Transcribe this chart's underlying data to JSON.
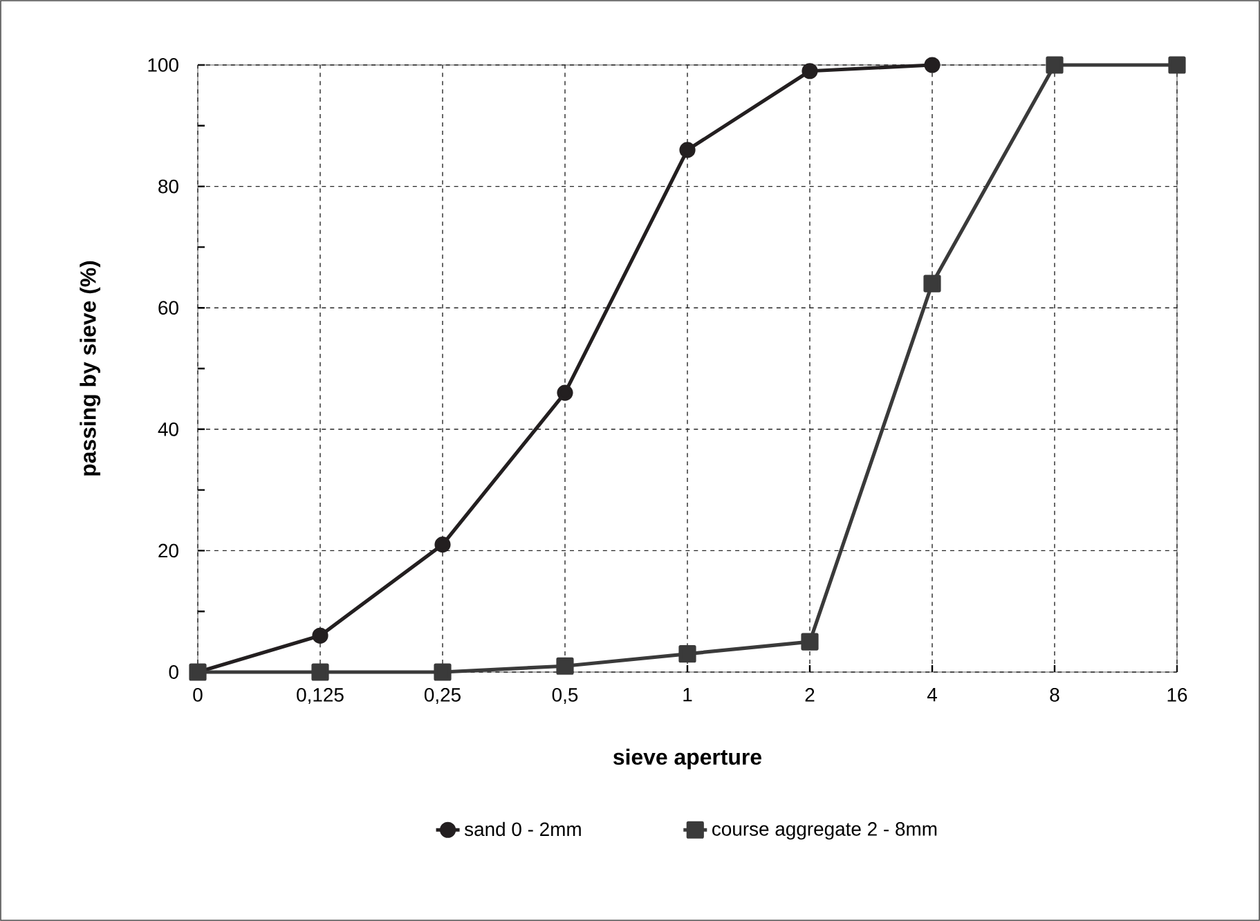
{
  "chart_data": {
    "type": "line",
    "xlabel": "sieve aperture",
    "ylabel": "passing by sieve (%)",
    "categories": [
      "0",
      "0,125",
      "0,25",
      "0,5",
      "1",
      "2",
      "4",
      "8",
      "16"
    ],
    "ylim": [
      0,
      100
    ],
    "yticks": [
      0,
      {
        "value": 10,
        "label": null
      },
      20,
      {
        "value": 30,
        "label": null
      },
      40,
      {
        "value": 50,
        "label": null
      },
      60,
      {
        "value": 70,
        "label": null
      },
      80,
      {
        "value": 90,
        "label": null
      },
      100
    ],
    "grid": true,
    "legend": "bottom",
    "series": [
      {
        "name": "sand 0 - 2mm",
        "color": "#231f20",
        "marker": "circle",
        "values": [
          0,
          6,
          21,
          46,
          86,
          99,
          100,
          null,
          null
        ]
      },
      {
        "name": "course aggregate 2 - 8mm",
        "color": "#3a3a3a",
        "marker": "square",
        "values": [
          0,
          0,
          0,
          1,
          3,
          5,
          64,
          100,
          100
        ]
      }
    ]
  }
}
